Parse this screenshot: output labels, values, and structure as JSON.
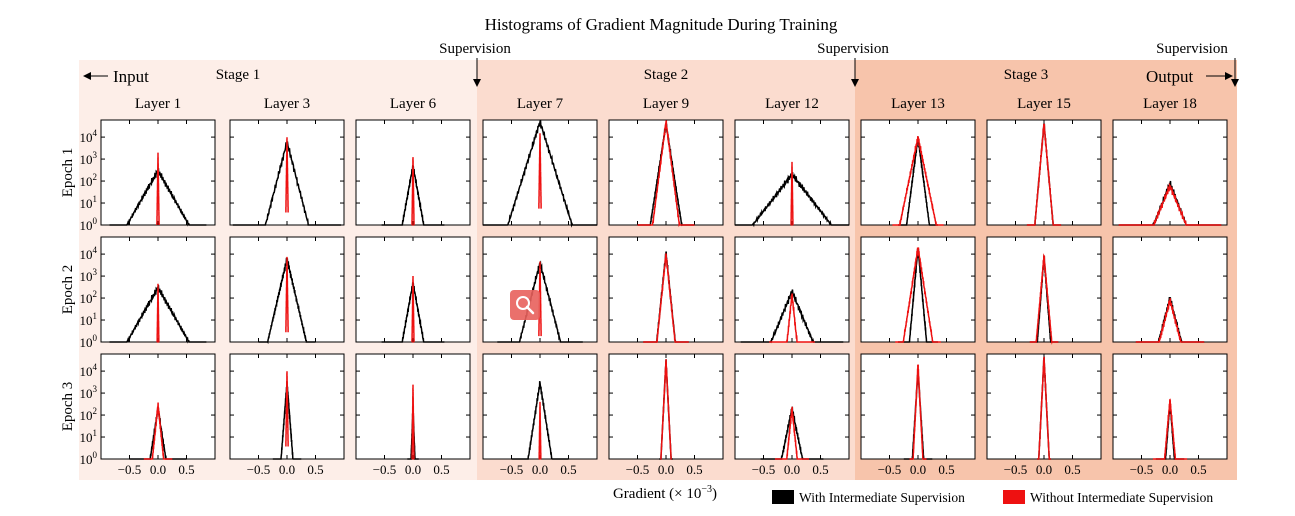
{
  "chart_data": {
    "type": "line",
    "title": "Histograms of Gradient Magnitude During Training",
    "xlabel": "Gradient (× 10",
    "xlabel_exp": "−3",
    "xlabel_close": ")",
    "ylabel_prefix": "Epoch",
    "scale_y": "log",
    "ylim": [
      1,
      60000
    ],
    "xlim": [
      -1.0,
      1.0
    ],
    "x_ticks": [
      "−0.5",
      "0.0",
      "0.5"
    ],
    "y_tick_base": "10",
    "y_tick_exps": [
      "0",
      "1",
      "2",
      "3",
      "4"
    ],
    "markers": {
      "input": "Input",
      "output": "Output",
      "supervision": [
        "Supervision",
        "Supervision",
        "Supervision"
      ]
    },
    "stages": [
      {
        "label": "Stage 1",
        "color": "#fdeee8"
      },
      {
        "label": "Stage 2",
        "color": "#fbdccf"
      },
      {
        "label": "Stage 3",
        "color": "#f7c4ab"
      }
    ],
    "layers": [
      {
        "name": "Layer 1",
        "stage": 0
      },
      {
        "name": "Layer 3",
        "stage": 0
      },
      {
        "name": "Layer 6",
        "stage": 0
      },
      {
        "name": "Layer 7",
        "stage": 1
      },
      {
        "name": "Layer 9",
        "stage": 1
      },
      {
        "name": "Layer 12",
        "stage": 1
      },
      {
        "name": "Layer 13",
        "stage": 2
      },
      {
        "name": "Layer 15",
        "stage": 2
      },
      {
        "name": "Layer 18",
        "stage": 2
      }
    ],
    "epochs": [
      "1",
      "2",
      "3"
    ],
    "series": [
      {
        "name": "With Intermediate Supervision",
        "color": "#000000"
      },
      {
        "name": "Without Intermediate Supervision",
        "color": "#ee1111"
      }
    ],
    "panels": [
      [
        {
          "black": {
            "peak": 300,
            "width": 0.22,
            "edge": 0.85
          },
          "red": {
            "peak": 1500,
            "width": 0.006,
            "edge": 0.02
          }
        },
        {
          "black": {
            "peak": 6000,
            "width": 0.1,
            "edge": 0.95
          },
          "red": {
            "peak": 8000,
            "width": 0.006,
            "edge": 0.02
          }
        },
        {
          "black": {
            "peak": 500,
            "width": 0.07,
            "edge": 0.55
          },
          "red": {
            "peak": 1000,
            "width": 0.006,
            "edge": 0.02
          }
        },
        {
          "black": {
            "peak": 50000,
            "width": 0.12,
            "edge": 1.0
          },
          "red": {
            "peak": 12000,
            "width": 0.006,
            "edge": 0.02
          }
        },
        {
          "black": {
            "peak": 40000,
            "width": 0.06,
            "edge": 0.5
          },
          "red": {
            "peak": 50000,
            "width": 0.05,
            "edge": 0.5
          }
        },
        {
          "black": {
            "peak": 200,
            "width": 0.3,
            "edge": 1.0
          },
          "red": {
            "peak": 600,
            "width": 0.006,
            "edge": 0.02
          }
        },
        {
          "black": {
            "peak": 10000,
            "width": 0.05,
            "edge": 0.35
          },
          "red": {
            "peak": 10000,
            "width": 0.08,
            "edge": 0.45
          }
        },
        {
          "black": {
            "peak": 40000,
            "width": 0.035,
            "edge": 0.3
          },
          "red": {
            "peak": 40000,
            "width": 0.035,
            "edge": 0.3
          }
        },
        {
          "black": {
            "peak": 80,
            "width": 0.15,
            "edge": 0.9
          },
          "red": {
            "peak": 60,
            "width": 0.16,
            "edge": 0.9
          }
        }
      ],
      [
        {
          "black": {
            "peak": 300,
            "width": 0.22,
            "edge": 0.85
          },
          "red": {
            "peak": 350,
            "width": 0.006,
            "edge": 0.02
          }
        },
        {
          "black": {
            "peak": 6000,
            "width": 0.09,
            "edge": 0.5
          },
          "red": {
            "peak": 6000,
            "width": 0.006,
            "edge": 0.02
          }
        },
        {
          "black": {
            "peak": 500,
            "width": 0.07,
            "edge": 0.55
          },
          "red": {
            "peak": 800,
            "width": 0.006,
            "edge": 0.02
          }
        },
        {
          "black": {
            "peak": 4000,
            "width": 0.1,
            "edge": 0.75
          },
          "red": {
            "peak": 4000,
            "width": 0.006,
            "edge": 0.02
          }
        },
        {
          "black": {
            "peak": 12000,
            "width": 0.04,
            "edge": 0.4
          },
          "red": {
            "peak": 10000,
            "width": 0.04,
            "edge": 0.4
          }
        },
        {
          "black": {
            "peak": 200,
            "width": 0.16,
            "edge": 0.9
          },
          "red": {
            "peak": 150,
            "width": 0.04,
            "edge": 0.4
          }
        },
        {
          "black": {
            "peak": 20000,
            "width": 0.035,
            "edge": 0.35
          },
          "red": {
            "peak": 20000,
            "width": 0.06,
            "edge": 0.4
          }
        },
        {
          "black": {
            "peak": 8000,
            "width": 0.03,
            "edge": 0.25
          },
          "red": {
            "peak": 8000,
            "width": 0.035,
            "edge": 0.25
          }
        },
        {
          "black": {
            "peak": 100,
            "width": 0.1,
            "edge": 0.6
          },
          "red": {
            "peak": 80,
            "width": 0.1,
            "edge": 0.6
          }
        }
      ],
      [
        {
          "black": {
            "peak": 200,
            "width": 0.06,
            "edge": 0.5
          },
          "red": {
            "peak": 300,
            "width": 0.04,
            "edge": 0.25
          }
        },
        {
          "black": {
            "peak": 3000,
            "width": 0.03,
            "edge": 0.25
          },
          "red": {
            "peak": 8000,
            "width": 0.006,
            "edge": 0.02
          }
        },
        {
          "black": {
            "peak": 200,
            "width": 0.015,
            "edge": 0.1
          },
          "red": {
            "peak": 2000,
            "width": 0.005,
            "edge": 0.02
          }
        },
        {
          "black": {
            "peak": 3000,
            "width": 0.06,
            "edge": 0.5
          },
          "red": {
            "peak": 300,
            "width": 0.006,
            "edge": 0.02
          }
        },
        {
          "black": {
            "peak": 30000,
            "width": 0.02,
            "edge": 0.12
          },
          "red": {
            "peak": 30000,
            "width": 0.02,
            "edge": 0.1
          }
        },
        {
          "black": {
            "peak": 200,
            "width": 0.08,
            "edge": 0.55
          },
          "red": {
            "peak": 200,
            "width": 0.04,
            "edge": 0.3
          }
        },
        {
          "black": {
            "peak": 10000,
            "width": 0.025,
            "edge": 0.25
          },
          "red": {
            "peak": 20000,
            "width": 0.02,
            "edge": 0.15
          }
        },
        {
          "black": {
            "peak": 40000,
            "width": 0.02,
            "edge": 0.12
          },
          "red": {
            "peak": 40000,
            "width": 0.02,
            "edge": 0.12
          }
        },
        {
          "black": {
            "peak": 400,
            "width": 0.03,
            "edge": 0.25
          },
          "red": {
            "peak": 500,
            "width": 0.035,
            "edge": 0.3
          }
        }
      ]
    ]
  }
}
